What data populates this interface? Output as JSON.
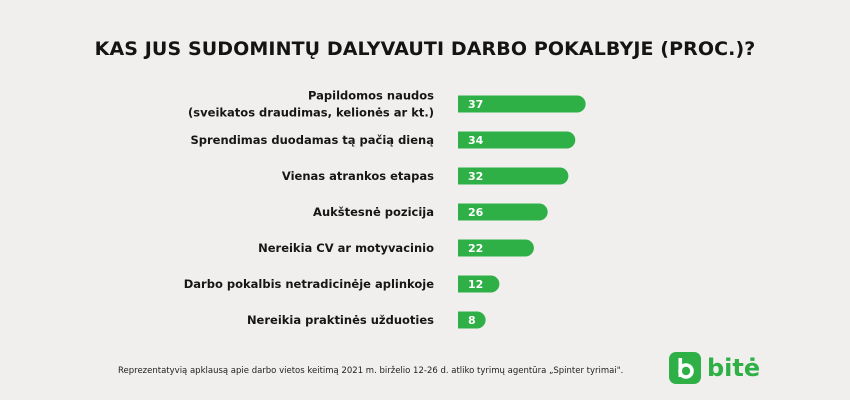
{
  "chart_data": {
    "type": "bar",
    "orientation": "horizontal",
    "title": "KAS JUS SUDOMINTŲ DALYVAUTI DARBO POKALBYJE (PROC.)?",
    "categories": [
      [
        "Papildomos naudos",
        "(sveikatos draudimas, kelionės ar kt.)"
      ],
      [
        "Sprendimas duodamas tą pačią dieną"
      ],
      [
        "Vienas atrankos etapas"
      ],
      [
        "Aukštesnė pozicija"
      ],
      [
        "Nereikia CV ar motyvacinio"
      ],
      [
        "Darbo pokalbis netradicinėje aplinkoje"
      ],
      [
        "Nereikia praktinės užduoties"
      ]
    ],
    "values": [
      37,
      34,
      32,
      26,
      22,
      12,
      8
    ],
    "value_labels": [
      "37",
      "34",
      "32",
      "26",
      "22",
      "12",
      "8"
    ],
    "bar_color": "#2fb047",
    "label_color": "#ffffff",
    "grid": false,
    "legend": "none"
  },
  "footnote": "Reprezentatyvią apklausą apie darbo vietos keitimą 2021 m. birželio 12-26 d. atliko tyrimų agentūra „Spinter tyrimai\".",
  "logo": {
    "text": "bitė",
    "icon": "bite-logo-icon"
  },
  "colors": {
    "background": "#f1efed",
    "accent": "#2fb047"
  }
}
